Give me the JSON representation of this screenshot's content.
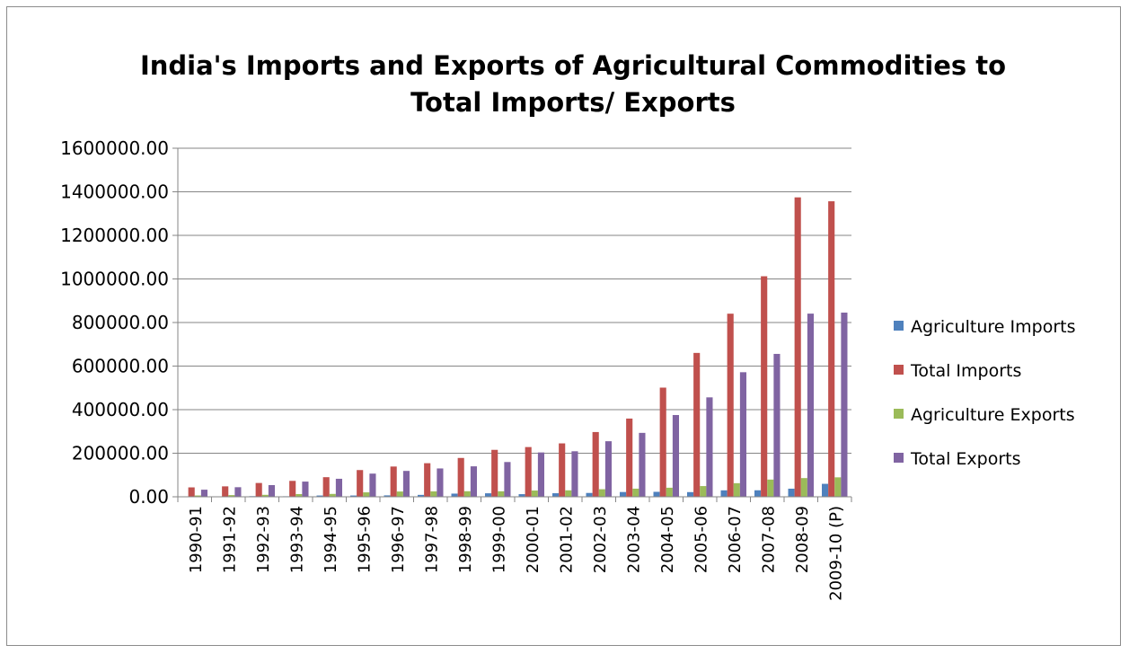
{
  "chart_data": {
    "type": "bar",
    "title_lines": [
      "India's Imports and Exports of Agricultural Commodities to",
      "Total Imports/ Exports"
    ],
    "xlabel": "",
    "ylabel": "",
    "ylim": [
      0,
      1600000
    ],
    "yticks": [
      0,
      200000,
      400000,
      600000,
      800000,
      1000000,
      1200000,
      1400000,
      1600000
    ],
    "ytick_labels": [
      "0.00",
      "200000.00",
      "400000.00",
      "600000.00",
      "800000.00",
      "1000000.00",
      "1200000.00",
      "1400000.00",
      "1600000.00"
    ],
    "grid": true,
    "legend_position": "right",
    "categories": [
      "1990-91",
      "1991-92",
      "1992-93",
      "1993-94",
      "1994-95",
      "1995-96",
      "1996-97",
      "1997-98",
      "1998-99",
      "1999-00",
      "2000-01",
      "2001-02",
      "2002-03",
      "2003-04",
      "2004-05",
      "2005-06",
      "2006-07",
      "2007-08",
      "2008-09",
      "2009-10 (P)"
    ],
    "series": [
      {
        "name": "Agriculture Imports",
        "color": "#4f81bd",
        "values": [
          1200,
          1500,
          2900,
          2400,
          5900,
          5900,
          6600,
          8800,
          14600,
          16100,
          12100,
          16300,
          17600,
          21900,
          22800,
          21500,
          29600,
          29900,
          37200,
          59500
        ]
      },
      {
        "name": "Total Imports",
        "color": "#c0504d",
        "values": [
          43200,
          47900,
          63400,
          73100,
          90000,
          122700,
          138900,
          154200,
          178300,
          215500,
          228300,
          245200,
          297200,
          359100,
          501100,
          660400,
          840500,
          1012300,
          1374400,
          1356500
        ]
      },
      {
        "name": "Agriculture Exports",
        "color": "#9bbb59",
        "values": [
          6000,
          7800,
          9000,
          12500,
          13200,
          20400,
          24200,
          24800,
          25500,
          25300,
          28700,
          29700,
          34700,
          37300,
          41600,
          49200,
          62400,
          79000,
          85900,
          89300
        ]
      },
      {
        "name": "Total Exports",
        "color": "#8064a2",
        "values": [
          32600,
          44000,
          53700,
          69800,
          82700,
          106400,
          118800,
          130100,
          139800,
          159600,
          203600,
          209000,
          255100,
          293400,
          375300,
          456400,
          571800,
          655900,
          840800,
          845500
        ]
      }
    ]
  }
}
